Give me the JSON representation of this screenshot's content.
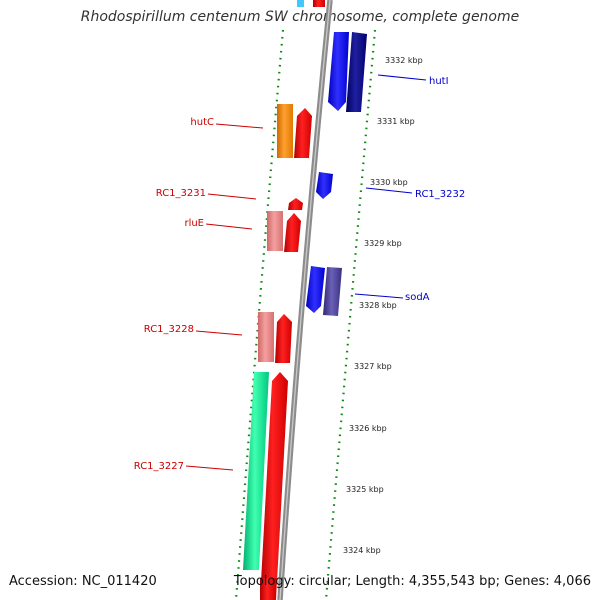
{
  "title": "Rhodospirillum centenum SW chromosome, complete genome",
  "footer": {
    "accession": "Accession: NC_011420",
    "topology": "Topology: circular; Length: 4,355,543 bp; Genes: 4,066"
  },
  "colors": {
    "forward": "#ff0000",
    "forward_light": "#ec8080",
    "reverse": "#0000ff",
    "reverse_dark": "#000080",
    "reverse_slate": "#4a3f8f",
    "orange": "#ff8c00",
    "cyan_green": "#00e08a",
    "backbone": "#8c8c8c",
    "tick": "#118811",
    "label_forward": "#cc0000",
    "label_reverse": "#0000cc"
  },
  "ticks": [
    "3332 kbp",
    "3331 kbp",
    "3330 kbp",
    "3329 kbp",
    "3328 kbp",
    "3327 kbp",
    "3326 kbp",
    "3325 kbp",
    "3324 kbp"
  ],
  "gene_labels": [
    {
      "text": "hutI",
      "strand": "reverse"
    },
    {
      "text": "hutC",
      "strand": "forward"
    },
    {
      "text": "RC1_3232",
      "strand": "reverse"
    },
    {
      "text": "RC1_3231",
      "strand": "forward"
    },
    {
      "text": "rluE",
      "strand": "forward"
    },
    {
      "text": "sodA",
      "strand": "reverse"
    },
    {
      "text": "RC1_3228",
      "strand": "forward"
    },
    {
      "text": "RC1_3227",
      "strand": "forward"
    }
  ]
}
